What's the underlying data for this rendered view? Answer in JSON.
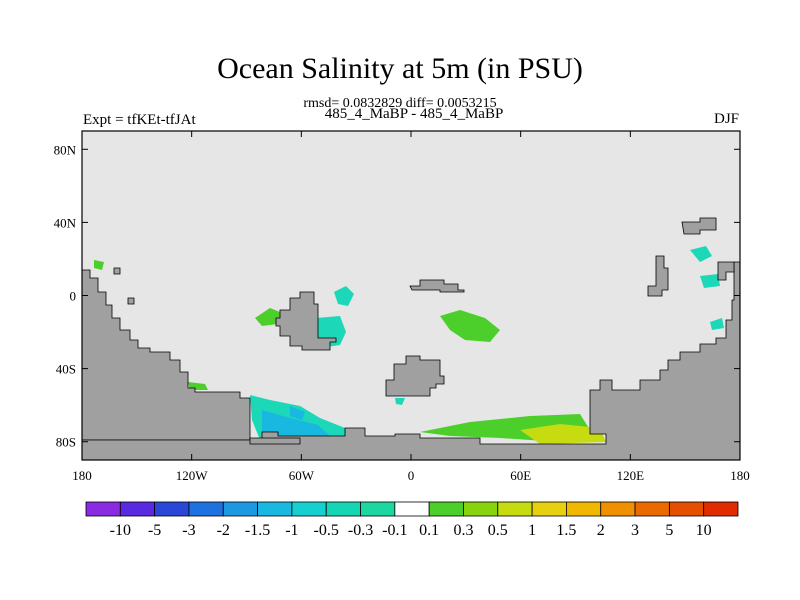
{
  "map": {
    "title": "Ocean Salinity at 5m (in PSU)",
    "subtitle": "rmsd= 0.0832829 diff= 0.0053215",
    "left_label": "Expt = tfKEt-tfJAt",
    "center_label": "485_4_MaBP - 485_4_MaBP",
    "right_label": "DJF",
    "lon_ticks": [
      "180",
      "120W",
      "60W",
      "0",
      "60E",
      "120E",
      "180"
    ],
    "lat_ticks": [
      "80N",
      "40N",
      "0",
      "40S",
      "80S"
    ],
    "colors": {
      "ocean": "#e6e6e6",
      "land": "#a0a0a0"
    }
  },
  "colorbar": {
    "labels": [
      "-10",
      "-5",
      "-3",
      "-2",
      "-1.5",
      "-1",
      "-0.5",
      "-0.3",
      "-0.1",
      "0.1",
      "0.3",
      "0.5",
      "1",
      "1.5",
      "2",
      "3",
      "5",
      "10"
    ],
    "colors": [
      "#8a2be2",
      "#5a2ae0",
      "#2a48d8",
      "#1e72e0",
      "#1e98e0",
      "#18b8e0",
      "#16cfd0",
      "#14d6b4",
      "#1cd8a0",
      "#ffffff",
      "#4ccf2a",
      "#88d40c",
      "#c6dc10",
      "#e6d010",
      "#f0b800",
      "#f09000",
      "#ea6a00",
      "#e45000",
      "#e02c00"
    ]
  }
}
